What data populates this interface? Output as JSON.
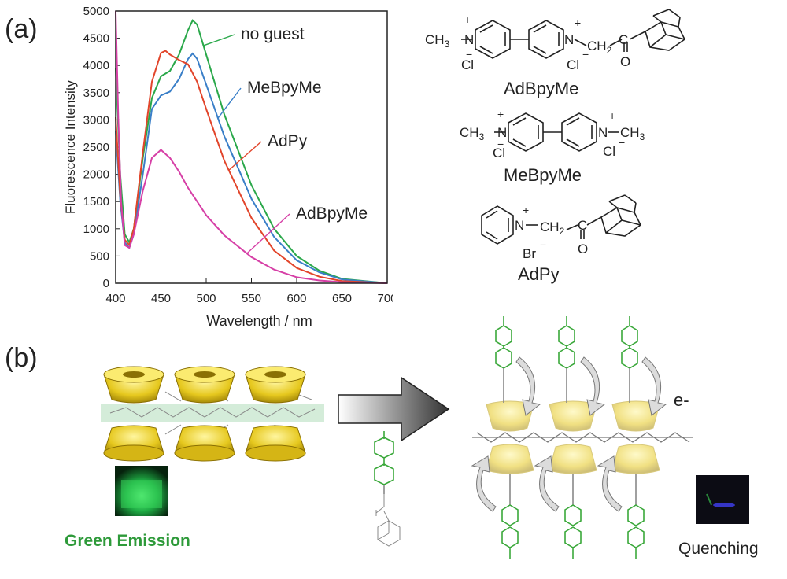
{
  "panels": {
    "a": "(a)",
    "b": "(b)"
  },
  "chart_data": {
    "type": "line",
    "xlabel": "Wavelength / nm",
    "ylabel": "Fluorescence Intensity",
    "xlim": [
      400,
      700
    ],
    "ylim": [
      0,
      5000
    ],
    "xticks": [
      400,
      450,
      500,
      550,
      600,
      650,
      700
    ],
    "yticks": [
      0,
      500,
      1000,
      1500,
      2000,
      2500,
      3000,
      3500,
      4000,
      4500,
      5000
    ],
    "grid": false,
    "series": [
      {
        "name": "no guest",
        "color": "#2aa84a",
        "x": [
          400,
          405,
          410,
          415,
          420,
          430,
          440,
          450,
          460,
          470,
          480,
          485,
          490,
          500,
          520,
          550,
          575,
          600,
          625,
          650,
          700
        ],
        "y": [
          3950,
          2000,
          900,
          750,
          1000,
          2300,
          3400,
          3800,
          3900,
          4200,
          4650,
          4830,
          4750,
          4200,
          3100,
          1800,
          1000,
          500,
          230,
          80,
          0
        ]
      },
      {
        "name": "MeBpyMe",
        "color": "#3a7fc8",
        "x": [
          400,
          405,
          410,
          415,
          420,
          430,
          440,
          450,
          460,
          470,
          480,
          485,
          490,
          500,
          520,
          550,
          575,
          600,
          625,
          650,
          700
        ],
        "y": [
          2800,
          1500,
          750,
          650,
          900,
          2000,
          3200,
          3450,
          3520,
          3750,
          4120,
          4220,
          4120,
          3650,
          2700,
          1550,
          850,
          420,
          200,
          70,
          0
        ]
      },
      {
        "name": "AdPy",
        "color": "#e2452b",
        "x": [
          400,
          405,
          410,
          415,
          420,
          430,
          440,
          450,
          455,
          460,
          470,
          480,
          490,
          500,
          520,
          550,
          575,
          600,
          625,
          650,
          700
        ],
        "y": [
          3050,
          1600,
          800,
          700,
          1000,
          2400,
          3700,
          4230,
          4270,
          4200,
          4100,
          4020,
          3700,
          3200,
          2250,
          1200,
          600,
          280,
          120,
          40,
          0
        ]
      },
      {
        "name": "AdBpyMe",
        "color": "#d63fa6",
        "x": [
          400,
          403,
          406,
          410,
          415,
          420,
          430,
          440,
          450,
          460,
          470,
          480,
          500,
          520,
          550,
          575,
          600,
          625,
          650,
          700
        ],
        "y": [
          5000,
          3000,
          1500,
          700,
          650,
          900,
          1700,
          2300,
          2450,
          2300,
          2050,
          1750,
          1250,
          880,
          480,
          250,
          110,
          50,
          20,
          0
        ]
      }
    ],
    "annotations": [
      "no guest",
      "MeBpyMe",
      "AdPy",
      "AdBpyMe"
    ]
  },
  "structures": {
    "adbpyme": {
      "name": "AdBpyMe",
      "plus": "+",
      "minus": "−",
      "methyl_label": "CH",
      "methyl_sub": "3",
      "n_label": "N",
      "cl_label": "Cl",
      "ch2_label": "CH",
      "ch2_sub": "2",
      "c_label": "C",
      "o_label": "O"
    },
    "mebpyme": {
      "name": "MeBpyMe",
      "plus": "+",
      "minus": "−",
      "methyl_label": "CH",
      "methyl_sub": "3",
      "n_label": "N",
      "cl_label": "Cl"
    },
    "adpy": {
      "name": "AdPy",
      "plus": "+",
      "minus": "−",
      "n_label": "N",
      "br_label": "Br",
      "ch2_label": "CH",
      "ch2_sub": "2",
      "c_label": "C",
      "o_label": "O"
    }
  },
  "scheme": {
    "green_caption": "Green Emission",
    "quench_caption": "Quenching",
    "electron_label": "e-",
    "colors": {
      "cyclodextrin": "#e0c520",
      "viologen": "#3aa83a",
      "caption_green": "#2e9a3a",
      "arrow": "#333333"
    }
  }
}
